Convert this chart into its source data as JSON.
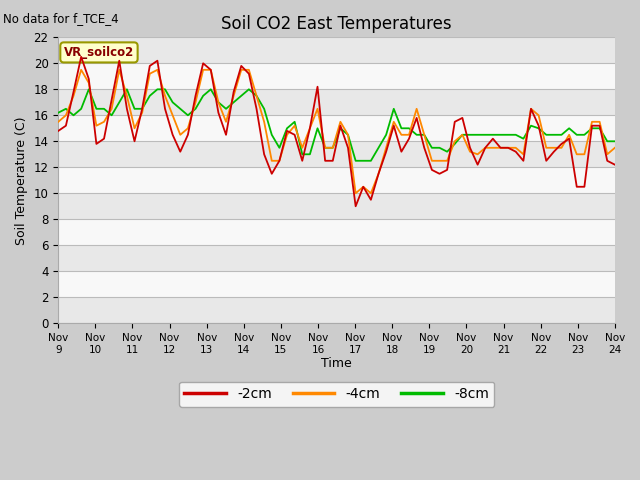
{
  "title": "Soil CO2 East Temperatures",
  "no_data_label": "No data for f_TCE_4",
  "site_label": "VR_soilco2",
  "xlabel": "Time",
  "ylabel": "Soil Temperature (C)",
  "ylim": [
    0,
    22
  ],
  "yticks": [
    0,
    2,
    4,
    6,
    8,
    10,
    12,
    14,
    16,
    18,
    20,
    22
  ],
  "colors": {
    "2cm": "#cc0000",
    "4cm": "#ff8800",
    "8cm": "#00bb00"
  },
  "legend": [
    "-2cm",
    "-4cm",
    "-8cm"
  ],
  "x_labels": [
    "Nov 9",
    "Nov 10",
    "Nov 11",
    "Nov 12",
    "Nov 13",
    "Nov 14",
    "Nov 15",
    "Nov 16",
    "Nov 17",
    "Nov 18",
    "Nov 19",
    "Nov 20",
    "Nov 21",
    "Nov 22",
    "Nov 23",
    "Nov 24"
  ],
  "data_2cm": [
    14.8,
    15.2,
    17.8,
    20.5,
    18.8,
    13.8,
    14.2,
    17.2,
    20.2,
    16.5,
    14.0,
    16.5,
    19.8,
    20.2,
    16.5,
    14.5,
    13.2,
    14.5,
    17.5,
    20.0,
    19.5,
    16.2,
    14.5,
    17.8,
    19.8,
    19.2,
    16.5,
    13.0,
    11.5,
    12.5,
    14.8,
    14.5,
    12.5,
    15.0,
    18.2,
    12.5,
    12.5,
    15.2,
    13.5,
    9.0,
    10.5,
    9.5,
    11.5,
    13.2,
    15.2,
    13.2,
    14.2,
    15.8,
    13.5,
    11.8,
    11.5,
    11.8,
    15.5,
    15.8,
    13.5,
    12.2,
    13.5,
    14.2,
    13.5,
    13.5,
    13.2,
    12.5,
    16.5,
    15.2,
    12.5,
    13.2,
    13.8,
    14.2,
    10.5,
    10.5,
    15.2,
    15.2,
    12.5,
    12.2
  ],
  "data_4cm": [
    15.5,
    16.0,
    17.5,
    19.5,
    18.5,
    15.2,
    15.5,
    16.5,
    19.5,
    17.5,
    15.0,
    16.2,
    19.2,
    19.5,
    17.5,
    16.0,
    14.5,
    15.0,
    17.0,
    19.5,
    19.5,
    17.0,
    15.5,
    17.5,
    19.5,
    19.5,
    17.5,
    15.5,
    12.5,
    12.5,
    14.5,
    15.2,
    13.5,
    15.0,
    16.5,
    13.5,
    13.5,
    15.5,
    14.5,
    10.0,
    10.5,
    10.0,
    11.5,
    13.5,
    15.5,
    14.5,
    14.5,
    16.5,
    14.5,
    12.5,
    12.5,
    12.5,
    14.0,
    14.5,
    13.2,
    13.0,
    13.5,
    13.5,
    13.5,
    13.5,
    13.5,
    13.0,
    16.5,
    16.0,
    13.5,
    13.5,
    13.5,
    14.5,
    13.0,
    13.0,
    15.5,
    15.5,
    13.0,
    13.5
  ],
  "data_8cm": [
    16.2,
    16.5,
    16.0,
    16.5,
    18.0,
    16.5,
    16.5,
    16.0,
    17.0,
    18.0,
    16.5,
    16.5,
    17.5,
    18.0,
    18.0,
    17.0,
    16.5,
    16.0,
    16.5,
    17.5,
    18.0,
    17.0,
    16.5,
    17.0,
    17.5,
    18.0,
    17.5,
    16.5,
    14.5,
    13.5,
    15.0,
    15.5,
    13.0,
    13.0,
    15.0,
    13.5,
    13.5,
    15.0,
    14.5,
    12.5,
    12.5,
    12.5,
    13.5,
    14.5,
    16.5,
    15.0,
    15.0,
    14.5,
    14.5,
    13.5,
    13.5,
    13.2,
    13.8,
    14.5,
    14.5,
    14.5,
    14.5,
    14.5,
    14.5,
    14.5,
    14.5,
    14.2,
    15.2,
    15.0,
    14.5,
    14.5,
    14.5,
    15.0,
    14.5,
    14.5,
    15.0,
    15.0,
    14.0,
    14.0
  ]
}
